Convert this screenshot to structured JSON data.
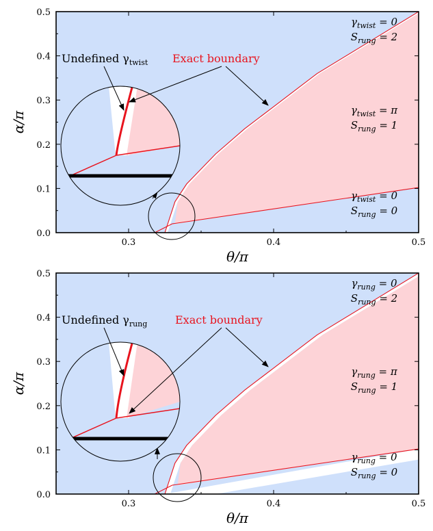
{
  "chart_data": [
    {
      "type": "area",
      "panel": "top",
      "xlabel": "θ/π",
      "ylabel": "α/π",
      "xlim": [
        0.25,
        0.5
      ],
      "ylim": [
        0.0,
        0.5
      ],
      "xticks": [
        "0.3",
        "0.4",
        "0.5"
      ],
      "yticks": [
        "0.0",
        "0.1",
        "0.2",
        "0.3",
        "0.4",
        "0.5"
      ],
      "grid": false,
      "colors": {
        "background": "#cfe0fb",
        "pink": "#fdd3d7",
        "white": "#ffffff",
        "boundary": "#e8141e"
      },
      "upper_boundary": {
        "x": [
          0.325,
          0.332,
          0.34,
          0.36,
          0.38,
          0.4,
          0.43,
          0.46,
          0.5
        ],
        "y": [
          0.0,
          0.07,
          0.11,
          0.178,
          0.235,
          0.285,
          0.36,
          0.42,
          0.5
        ]
      },
      "lower_boundary": {
        "x": [
          0.33,
          0.5
        ],
        "y": [
          0.02,
          0.102
        ]
      },
      "region_labels": [
        {
          "line1": "γ_twist = 0",
          "line2": "S_rung = 2"
        },
        {
          "line1": "γ_twist = π",
          "line2": "S_rung = 1"
        },
        {
          "line1": "γ_twist = 0",
          "line2": "S_rung = 0"
        }
      ],
      "annotations": {
        "undefined": "Undefined γ_twist",
        "exact": "Exact boundary"
      }
    },
    {
      "type": "area",
      "panel": "bottom",
      "xlabel": "θ/π",
      "ylabel": "α/π",
      "xlim": [
        0.25,
        0.5
      ],
      "ylim": [
        0.0,
        0.5
      ],
      "xticks": [
        "0.3",
        "0.4",
        "0.5"
      ],
      "yticks": [
        "0.0",
        "0.1",
        "0.2",
        "0.3",
        "0.4",
        "0.5"
      ],
      "grid": false,
      "colors": {
        "background": "#cfe0fb",
        "pink": "#fdd3d7",
        "white": "#ffffff",
        "boundary": "#e8141e"
      },
      "upper_boundary": {
        "x": [
          0.325,
          0.332,
          0.34,
          0.36,
          0.38,
          0.4,
          0.43,
          0.46,
          0.5
        ],
        "y": [
          0.0,
          0.07,
          0.11,
          0.178,
          0.235,
          0.285,
          0.36,
          0.42,
          0.5
        ]
      },
      "lower_boundary": {
        "x": [
          0.33,
          0.5
        ],
        "y": [
          0.02,
          0.102
        ]
      },
      "region_labels": [
        {
          "line1": "γ_rung = 0",
          "line2": "S_rung = 2"
        },
        {
          "line1": "γ_rung = π",
          "line2": "S_rung = 1"
        },
        {
          "line1": "γ_rung = 0",
          "line2": "S_rung = 0"
        }
      ],
      "annotations": {
        "undefined": "Undefined γ_rung",
        "exact": "Exact boundary"
      }
    }
  ]
}
